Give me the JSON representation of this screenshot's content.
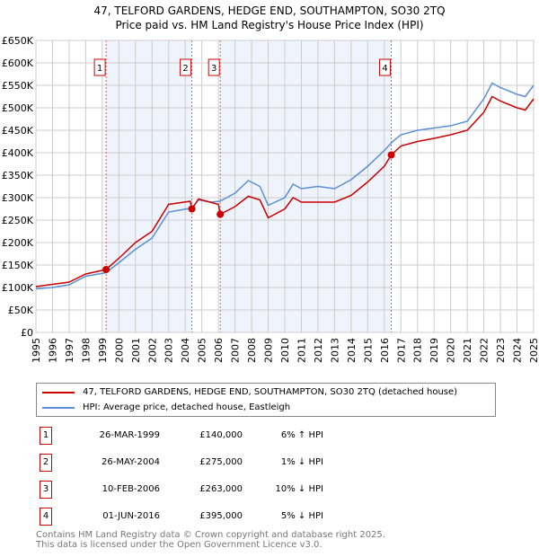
{
  "chart_data": {
    "type": "line",
    "title": "47, TELFORD GARDENS, HEDGE END, SOUTHAMPTON, SO30 2TQ",
    "subtitle": "Price paid vs. HM Land Registry's House Price Index (HPI)",
    "xlim": [
      1995,
      2025
    ],
    "ylim": [
      0,
      650000
    ],
    "yticks": [
      0,
      50000,
      100000,
      150000,
      200000,
      250000,
      300000,
      350000,
      400000,
      450000,
      500000,
      550000,
      600000,
      650000
    ],
    "ytick_labels": [
      "£0",
      "£50K",
      "£100K",
      "£150K",
      "£200K",
      "£250K",
      "£300K",
      "£350K",
      "£400K",
      "£450K",
      "£500K",
      "£550K",
      "£600K",
      "£650K"
    ],
    "xtick_labels": [
      "1995",
      "1996",
      "1997",
      "1998",
      "1999",
      "2000",
      "2001",
      "2002",
      "2003",
      "2004",
      "2005",
      "2006",
      "2007",
      "2008",
      "2009",
      "2010",
      "2011",
      "2012",
      "2013",
      "2014",
      "2015",
      "2016",
      "2017",
      "2018",
      "2019",
      "2020",
      "2021",
      "2022",
      "2023",
      "2024",
      "2025"
    ],
    "grid": true,
    "series": [
      {
        "name": "47, TELFORD GARDENS, HEDGE END, SOUTHAMPTON, SO30 2TQ (detached house)",
        "color": "#cc0000",
        "x": [
          1995,
          1996,
          1997,
          1998,
          1999.23,
          2000,
          2001,
          2002,
          2003,
          2004.3,
          2004.4,
          2004.8,
          2005.5,
          2006.0,
          2006.11,
          2007,
          2007.8,
          2008.5,
          2009,
          2010,
          2010.5,
          2011,
          2012,
          2013,
          2014,
          2015,
          2016,
          2016.42,
          2017,
          2018,
          2019,
          2020,
          2021,
          2022,
          2022.5,
          2023,
          2024,
          2024.5,
          2025
        ],
        "y": [
          102000,
          107000,
          112000,
          130000,
          140000,
          165000,
          200000,
          225000,
          285000,
          292000,
          275000,
          297000,
          290000,
          285000,
          263000,
          280000,
          303000,
          295000,
          255000,
          275000,
          300000,
          290000,
          290000,
          290000,
          305000,
          335000,
          370000,
          395000,
          415000,
          425000,
          432000,
          440000,
          450000,
          490000,
          525000,
          515000,
          500000,
          495000,
          520000
        ]
      },
      {
        "name": "HPI: Average price, detached house, Eastleigh",
        "color": "#5b8fd6",
        "x": [
          1995,
          1996,
          1997,
          1998,
          1999.23,
          2000,
          2001,
          2002,
          2003,
          2004.4,
          2004.8,
          2005.5,
          2006.1,
          2007,
          2007.8,
          2008.5,
          2009,
          2010,
          2010.5,
          2011,
          2012,
          2013,
          2014,
          2015,
          2016,
          2016.5,
          2017,
          2018,
          2019,
          2020,
          2021,
          2022,
          2022.5,
          2023,
          2024,
          2024.5,
          2025
        ],
        "y": [
          97000,
          100000,
          106000,
          125000,
          133000,
          155000,
          185000,
          210000,
          268000,
          277000,
          295000,
          290000,
          292000,
          310000,
          338000,
          325000,
          283000,
          300000,
          330000,
          320000,
          325000,
          320000,
          340000,
          370000,
          405000,
          425000,
          440000,
          450000,
          455000,
          460000,
          470000,
          520000,
          555000,
          545000,
          530000,
          525000,
          550000
        ]
      }
    ],
    "sales": [
      {
        "label": "1",
        "x": 1999.23,
        "y": 140000,
        "date": "26-MAR-1999",
        "price": "£140,000",
        "hpi": "6% ↑ HPI"
      },
      {
        "label": "2",
        "x": 2004.4,
        "y": 275000,
        "date": "26-MAY-2004",
        "price": "£275,000",
        "hpi": "1% ↓ HPI"
      },
      {
        "label": "3",
        "x": 2006.11,
        "y": 263000,
        "date": "10-FEB-2006",
        "price": "£263,000",
        "hpi": "10% ↓ HPI"
      },
      {
        "label": "4",
        "x": 2016.42,
        "y": 395000,
        "date": "01-JUN-2016",
        "price": "£395,000",
        "hpi": "5% ↓ HPI"
      }
    ],
    "shaded_ranges": [
      [
        1999.23,
        2004.4
      ],
      [
        2006.11,
        2016.42
      ]
    ],
    "legend_placement": "below"
  },
  "footer": {
    "line1": "Contains HM Land Registry data © Crown copyright and database right 2025.",
    "line2": "This data is licensed under the Open Government Licence v3.0."
  }
}
